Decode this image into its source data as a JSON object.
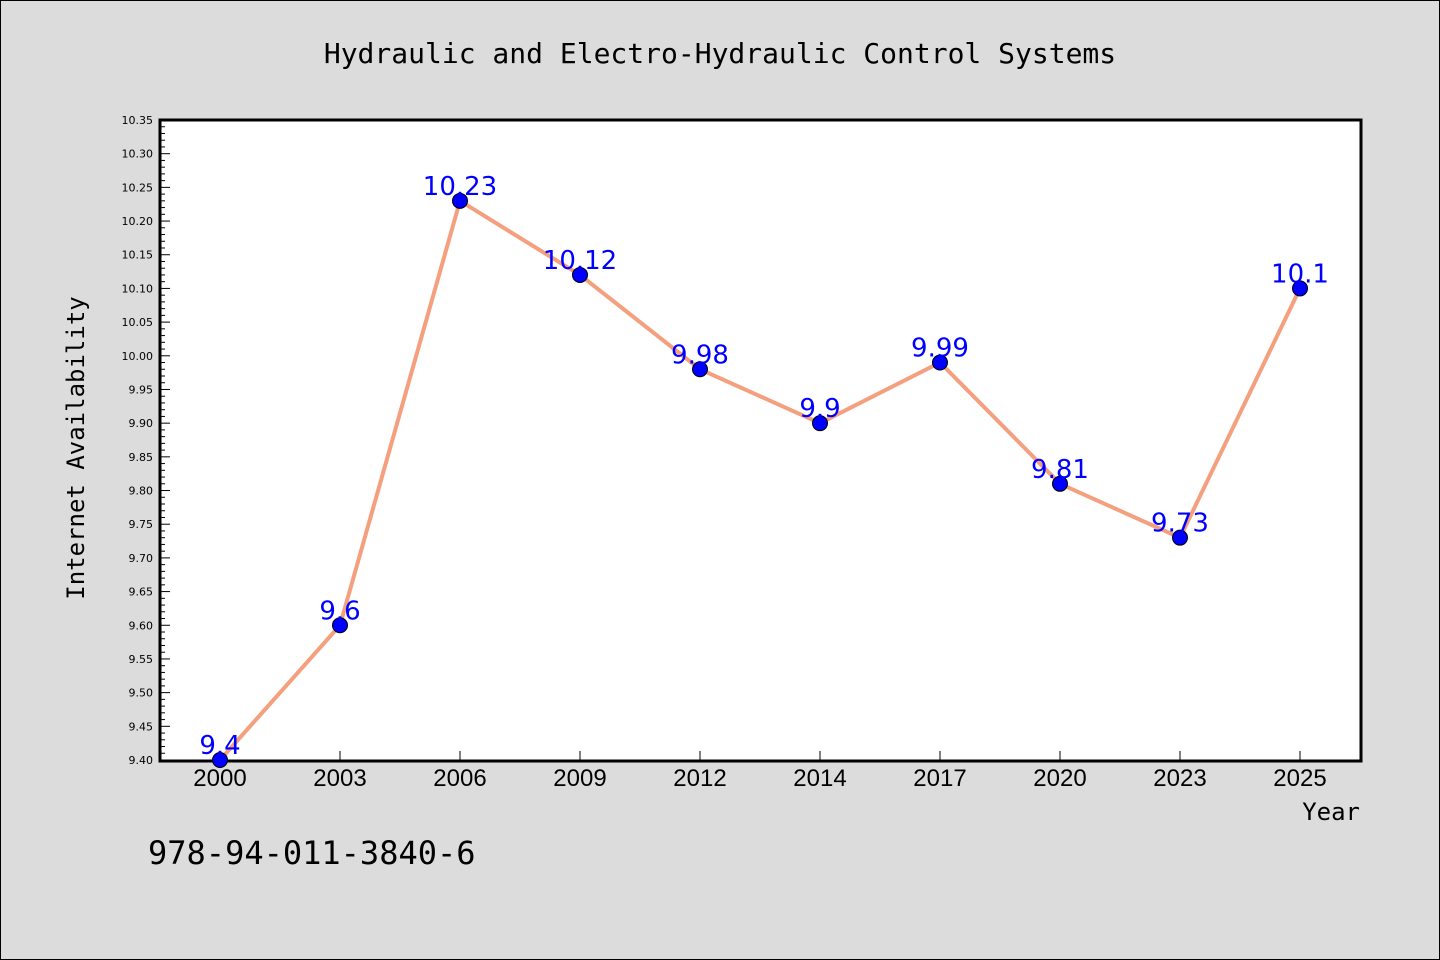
{
  "chart_data": {
    "type": "line",
    "title": "Hydraulic and Electro-Hydraulic Control Systems",
    "xlabel": "Year",
    "ylabel": "Internet Availability",
    "categories": [
      "2000",
      "2003",
      "2006",
      "2009",
      "2012",
      "2014",
      "2017",
      "2020",
      "2023",
      "2025"
    ],
    "values": [
      9.4,
      9.6,
      10.23,
      10.12,
      9.98,
      9.9,
      9.99,
      9.81,
      9.73,
      10.1
    ],
    "data_labels": [
      "9.4",
      "9.6",
      "10.23",
      "10.12",
      "9.98",
      "9.9",
      "9.99",
      "9.81",
      "9.73",
      "10.1"
    ],
    "ylim": [
      9.4,
      10.35
    ],
    "yticks": [
      "9.40",
      "9.45",
      "9.50",
      "9.55",
      "9.60",
      "9.65",
      "9.70",
      "9.75",
      "9.80",
      "9.85",
      "9.90",
      "9.95",
      "10.00",
      "10.05",
      "10.10",
      "10.15",
      "10.20",
      "10.25",
      "10.30",
      "10.35"
    ],
    "grid": false,
    "colors": {
      "line": "#f4a07f",
      "marker": "#0000ff",
      "label": "#0000ff",
      "background": "#dcdcdc",
      "plot_background": "#ffffff"
    }
  },
  "footer": {
    "isbn": "978-94-011-3840-6"
  }
}
